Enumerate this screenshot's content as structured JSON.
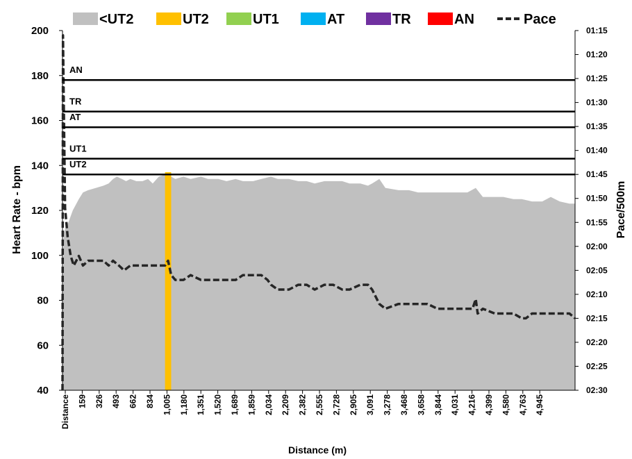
{
  "chart_data": {
    "type": "area",
    "xlabel": "Distance (m)",
    "ylabel": "Heart Rate - bpm",
    "y2label": "Pace/500m",
    "ylim": [
      40,
      200
    ],
    "yticks": [
      40,
      60,
      80,
      100,
      120,
      140,
      160,
      180,
      200
    ],
    "y2ticks": [
      "01:15",
      "01:20",
      "01:25",
      "01:30",
      "01:35",
      "01:40",
      "01:45",
      "01:50",
      "01:55",
      "02:00",
      "02:05",
      "02:10",
      "02:15",
      "02:20",
      "02:25",
      "02:30"
    ],
    "y2lim_seconds": [
      75,
      150
    ],
    "xlim": [
      0,
      5000
    ],
    "xticks": [
      "Distance",
      "159",
      "326",
      "493",
      "662",
      "834",
      "1,005",
      "1,180",
      "1,351",
      "1,520",
      "1,689",
      "1,859",
      "2,034",
      "2,209",
      "2,382",
      "2,555",
      "2,728",
      "2,905",
      "3,091",
      "3,278",
      "3,468",
      "3,658",
      "3,844",
      "4,031",
      "4,216",
      "4,399",
      "4,580",
      "4,763",
      "4,945"
    ],
    "legend": [
      {
        "name": "<UT2",
        "color": "#c0c0c0",
        "kind": "box"
      },
      {
        "name": "UT2",
        "color": "#ffc000",
        "kind": "box"
      },
      {
        "name": "UT1",
        "color": "#92d050",
        "kind": "box"
      },
      {
        "name": "AT",
        "color": "#00b0f0",
        "kind": "box"
      },
      {
        "name": "TR",
        "color": "#7030a0",
        "kind": "box"
      },
      {
        "name": "AN",
        "color": "#ff0000",
        "kind": "box"
      },
      {
        "name": "Pace",
        "color": "#262626",
        "kind": "dash"
      }
    ],
    "legend_position": "top",
    "zones": [
      {
        "label": "AN",
        "hr": 178
      },
      {
        "label": "TR",
        "hr": 164
      },
      {
        "label": "AT",
        "hr": 157
      },
      {
        "label": "UT1",
        "hr": 143
      },
      {
        "label": "UT2",
        "hr": 136
      }
    ],
    "hr_series": {
      "name": "<UT2",
      "x": [
        0,
        10,
        30,
        60,
        100,
        159,
        200,
        250,
        326,
        400,
        450,
        493,
        530,
        580,
        620,
        662,
        720,
        780,
        834,
        880,
        940,
        1005,
        1060,
        1100,
        1180,
        1250,
        1351,
        1420,
        1520,
        1600,
        1689,
        1760,
        1859,
        1940,
        2034,
        2100,
        2209,
        2300,
        2382,
        2460,
        2555,
        2640,
        2728,
        2800,
        2905,
        2980,
        3020,
        3091,
        3150,
        3278,
        3380,
        3468,
        3560,
        3658,
        3750,
        3844,
        3950,
        4031,
        4100,
        4216,
        4300,
        4399,
        4480,
        4580,
        4680,
        4763,
        4850,
        4945,
        5000
      ],
      "values": [
        40,
        110,
        112,
        115,
        120,
        125,
        128,
        129,
        130,
        131,
        132,
        134,
        135,
        134,
        133,
        134,
        133,
        133,
        134,
        132,
        135,
        136,
        135,
        134,
        135,
        134,
        135,
        134,
        134,
        133,
        134,
        133,
        133,
        134,
        135,
        134,
        134,
        133,
        133,
        132,
        133,
        133,
        133,
        132,
        132,
        131,
        132,
        134,
        130,
        129,
        129,
        128,
        128,
        128,
        128,
        128,
        128,
        130,
        126,
        126,
        126,
        125,
        125,
        124,
        124,
        126,
        124,
        123,
        123
      ]
    },
    "ut2_band": {
      "x": [
        1000,
        1060
      ],
      "hr_top": 137
    },
    "pace_series": {
      "name": "Pace",
      "x": [
        0,
        5,
        12,
        25,
        50,
        80,
        110,
        159,
        200,
        250,
        326,
        400,
        450,
        493,
        550,
        600,
        662,
        720,
        780,
        834,
        880,
        940,
        1000,
        1030,
        1060,
        1100,
        1180,
        1250,
        1351,
        1420,
        1520,
        1600,
        1689,
        1760,
        1859,
        1940,
        2000,
        2034,
        2100,
        2209,
        2300,
        2382,
        2460,
        2555,
        2640,
        2728,
        2800,
        2905,
        2980,
        3020,
        3091,
        3150,
        3278,
        3380,
        3468,
        3560,
        3658,
        3750,
        3844,
        3950,
        4000,
        4031,
        4050,
        4100,
        4216,
        4300,
        4399,
        4480,
        4520,
        4580,
        4680,
        4763,
        4850,
        4945,
        5000
      ],
      "values_sec": [
        150,
        76,
        90,
        112,
        118,
        122,
        124,
        122,
        124,
        123,
        123,
        123,
        124,
        123,
        124,
        125,
        124,
        124,
        124,
        124,
        124,
        124,
        124,
        123,
        126,
        127,
        127,
        126,
        127,
        127,
        127,
        127,
        127,
        126,
        126,
        126,
        127,
        128,
        129,
        129,
        128,
        128,
        129,
        128,
        128,
        129,
        129,
        128,
        128,
        129,
        132,
        133,
        132,
        132,
        132,
        132,
        133,
        133,
        133,
        133,
        133,
        131,
        134,
        133,
        134,
        134,
        134,
        135,
        135,
        134,
        134,
        134,
        134,
        134,
        135
      ]
    }
  }
}
